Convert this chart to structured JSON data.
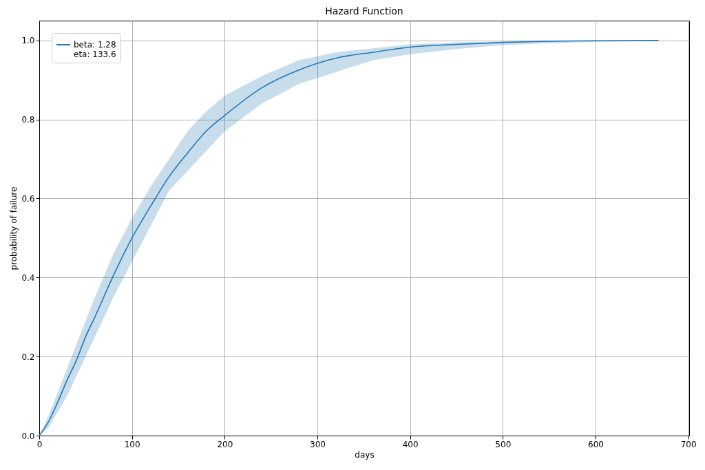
{
  "chart_data": {
    "type": "line",
    "title": "Hazard Function",
    "xlabel": "days",
    "ylabel": "probability of failure",
    "xlim": [
      0,
      701
    ],
    "xticks": [
      0,
      100,
      200,
      300,
      400,
      500,
      600,
      700
    ],
    "ylim": [
      0,
      1.05
    ],
    "yticks": [
      {
        "value": 0,
        "label": "0.0"
      },
      {
        "value": 0.2,
        "label": "0.2"
      },
      {
        "value": 0.4,
        "label": "0.4"
      },
      {
        "value": 0.6,
        "label": "0.6"
      },
      {
        "value": 0.8,
        "label": "0.8"
      },
      {
        "value": 1,
        "label": "1.0"
      }
    ],
    "grid": true,
    "legend": "top left",
    "series": [
      {
        "name": "beta: 1.28\neta: 133.6",
        "color": "#1f77b4",
        "x": [
          0,
          10,
          20,
          30,
          40,
          50,
          60,
          80,
          100,
          120,
          140,
          160,
          180,
          200,
          240,
          280,
          320,
          360,
          400,
          450,
          500,
          550,
          600,
          668
        ],
        "values": [
          0,
          0.035,
          0.085,
          0.14,
          0.19,
          0.25,
          0.3,
          0.405,
          0.5,
          0.58,
          0.655,
          0.715,
          0.77,
          0.81,
          0.88,
          0.925,
          0.955,
          0.97,
          0.983,
          0.99,
          0.995,
          0.998,
          0.999,
          1
        ],
        "lower": [
          0,
          0.02,
          0.06,
          0.1,
          0.15,
          0.2,
          0.25,
          0.35,
          0.44,
          0.53,
          0.62,
          0.67,
          0.72,
          0.77,
          0.84,
          0.89,
          0.92,
          0.95,
          0.965,
          0.978,
          0.988,
          0.993,
          0.996,
          0.999
        ],
        "upper": [
          0,
          0.05,
          0.11,
          0.17,
          0.23,
          0.29,
          0.35,
          0.46,
          0.55,
          0.63,
          0.7,
          0.77,
          0.82,
          0.86,
          0.91,
          0.95,
          0.97,
          0.98,
          0.99,
          0.995,
          0.997,
          0.999,
          1,
          1
        ]
      }
    ]
  }
}
